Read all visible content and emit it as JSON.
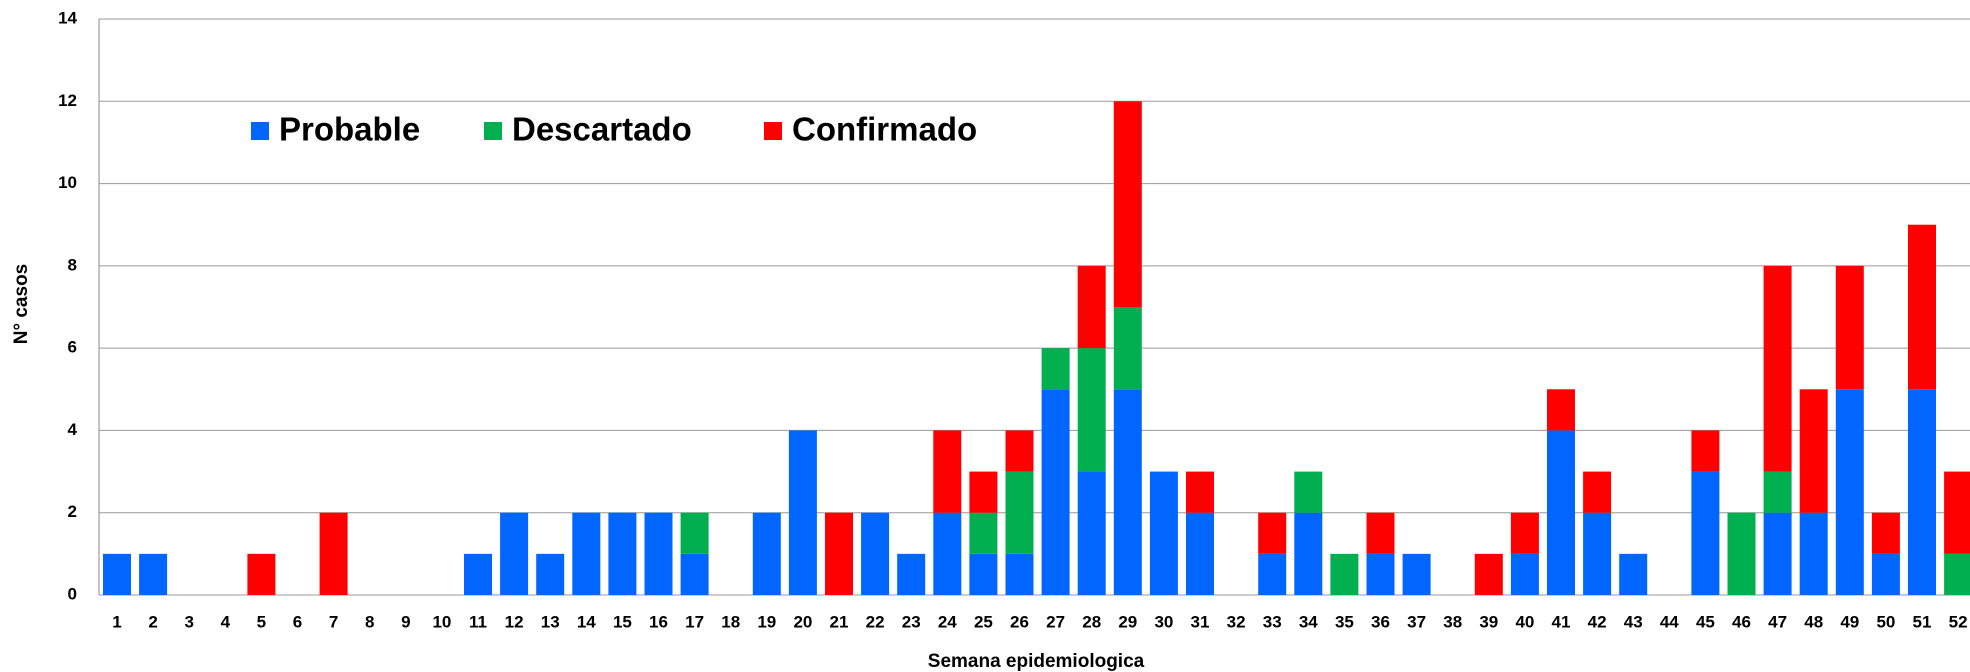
{
  "chart_data": {
    "type": "stacked_bar",
    "x_label": "Semana epidemiologica",
    "y_label": "N° casos",
    "categories": [
      "1",
      "2",
      "3",
      "4",
      "5",
      "6",
      "7",
      "8",
      "9",
      "10",
      "11",
      "12",
      "13",
      "14",
      "15",
      "16",
      "17",
      "18",
      "19",
      "20",
      "21",
      "22",
      "23",
      "24",
      "25",
      "26",
      "27",
      "28",
      "29",
      "30",
      "31",
      "32",
      "33",
      "34",
      "35",
      "36",
      "37",
      "38",
      "39",
      "40",
      "41",
      "42",
      "43",
      "44",
      "45",
      "46",
      "47",
      "48",
      "49",
      "50",
      "51",
      "52"
    ],
    "series": [
      {
        "name": "Probable",
        "color": "#0066ff",
        "values": [
          1,
          1,
          0,
          0,
          0,
          0,
          0,
          0,
          0,
          0,
          1,
          2,
          1,
          2,
          2,
          2,
          1,
          0,
          2,
          4,
          0,
          2,
          1,
          2,
          1,
          1,
          5,
          3,
          5,
          3,
          2,
          0,
          1,
          2,
          0,
          1,
          1,
          0,
          0,
          1,
          4,
          2,
          1,
          0,
          3,
          0,
          2,
          2,
          5,
          1,
          5,
          0
        ]
      },
      {
        "name": "Descartado",
        "color": "#00b050",
        "values": [
          0,
          0,
          0,
          0,
          0,
          0,
          0,
          0,
          0,
          0,
          0,
          0,
          0,
          0,
          0,
          0,
          1,
          0,
          0,
          0,
          0,
          0,
          0,
          0,
          1,
          2,
          1,
          3,
          2,
          0,
          0,
          0,
          0,
          1,
          1,
          0,
          0,
          0,
          0,
          0,
          0,
          0,
          0,
          0,
          0,
          2,
          1,
          0,
          0,
          0,
          0,
          1
        ]
      },
      {
        "name": "Confirmado",
        "color": "#ff0000",
        "values": [
          0,
          0,
          0,
          0,
          1,
          0,
          2,
          0,
          0,
          0,
          0,
          0,
          0,
          0,
          0,
          0,
          0,
          0,
          0,
          0,
          2,
          0,
          0,
          2,
          1,
          1,
          0,
          2,
          5,
          0,
          1,
          0,
          1,
          0,
          0,
          1,
          0,
          0,
          1,
          1,
          1,
          1,
          0,
          0,
          1,
          0,
          5,
          3,
          3,
          1,
          4,
          2
        ]
      }
    ],
    "ylim": [
      0,
      14
    ],
    "yticks": [
      0,
      2,
      4,
      6,
      8,
      10,
      12,
      14
    ],
    "grid": true
  }
}
